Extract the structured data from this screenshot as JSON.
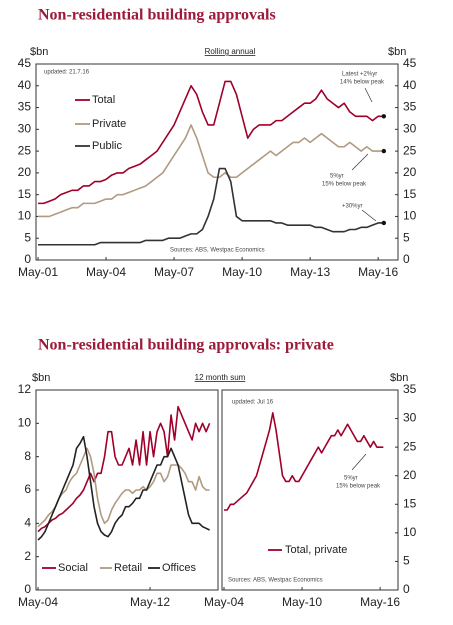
{
  "chart_data": [
    {
      "type": "line",
      "title": "Non-residential building approvals",
      "subtitle": "Rolling annual",
      "y_label": "$bn",
      "y2_label": "$bn",
      "x": [
        "May-01",
        "Aug-01",
        "Nov-01",
        "Feb-02",
        "May-02",
        "Aug-02",
        "Nov-02",
        "Feb-03",
        "May-03",
        "Aug-03",
        "Nov-03",
        "Feb-04",
        "May-04",
        "Aug-04",
        "Nov-04",
        "Feb-05",
        "May-05",
        "Aug-05",
        "Nov-05",
        "Feb-06",
        "May-06",
        "Aug-06",
        "Nov-06",
        "Feb-07",
        "May-07",
        "Aug-07",
        "Nov-07",
        "Feb-08",
        "May-08",
        "Aug-08",
        "Nov-08",
        "Feb-09",
        "May-09",
        "Aug-09",
        "Nov-09",
        "Feb-10",
        "May-10",
        "Aug-10",
        "Nov-10",
        "Feb-11",
        "May-11",
        "Aug-11",
        "Nov-11",
        "Feb-12",
        "May-12",
        "Aug-12",
        "Nov-12",
        "Feb-13",
        "May-13",
        "Aug-13",
        "Nov-13",
        "Feb-14",
        "May-14",
        "Aug-14",
        "Nov-14",
        "Feb-15",
        "May-15",
        "Aug-15",
        "Nov-15",
        "Feb-16",
        "May-16",
        "Aug-16"
      ],
      "xticks": [
        "May-01",
        "May-04",
        "May-07",
        "May-10",
        "May-13",
        "May-16"
      ],
      "ylim": [
        0,
        45
      ],
      "yticks": [
        0,
        5,
        10,
        15,
        20,
        25,
        30,
        35,
        40,
        45
      ],
      "y2lim": [
        0,
        45
      ],
      "y2ticks": [
        0,
        5,
        10,
        15,
        20,
        25,
        30,
        35,
        40,
        45
      ],
      "legend": "upper left",
      "series": [
        {
          "name": "Total",
          "color": "#a0002a",
          "values": [
            13,
            13,
            13.5,
            14,
            15,
            15.5,
            16,
            16,
            17,
            17,
            18,
            18,
            18.5,
            19.5,
            20,
            20,
            21,
            21.5,
            22,
            23,
            24,
            25,
            27,
            29,
            31,
            34,
            37,
            40,
            38,
            34,
            31,
            31,
            36,
            41,
            41,
            38,
            33,
            28,
            30,
            31,
            31,
            31,
            32,
            32,
            33,
            34,
            35,
            36,
            36,
            37,
            39,
            37,
            36,
            35,
            36,
            34,
            33,
            33,
            33,
            32,
            33,
            33
          ]
        },
        {
          "name": "Private",
          "color": "#b09a80",
          "values": [
            10,
            10,
            10,
            10.5,
            11,
            11.5,
            12,
            12,
            13,
            13,
            13,
            13.5,
            14,
            14,
            15,
            15,
            15.5,
            16,
            16.5,
            17,
            18,
            19,
            20,
            22,
            24,
            26,
            28,
            31,
            28,
            24,
            20,
            19,
            19,
            20,
            19,
            19,
            20,
            21,
            22,
            23,
            24,
            25,
            24,
            25,
            26,
            27,
            27,
            28,
            27,
            28,
            29,
            28,
            27,
            26,
            26,
            27,
            26,
            25,
            26,
            25,
            25,
            25
          ]
        },
        {
          "name": "Public",
          "color": "#333333",
          "values": [
            3.5,
            3.5,
            3.5,
            3.5,
            3.5,
            3.5,
            3.5,
            3.5,
            3.5,
            3.5,
            3.5,
            4,
            4,
            4,
            4,
            4,
            4,
            4,
            4,
            4.5,
            4.5,
            4.5,
            4.5,
            5,
            5,
            5,
            5.5,
            6,
            6,
            7,
            10,
            14,
            21,
            21,
            18,
            10,
            9,
            9,
            9,
            9,
            9,
            9,
            8.5,
            8.5,
            8,
            8,
            8,
            8,
            8,
            7.5,
            7.5,
            7,
            6.5,
            6.5,
            6.5,
            7,
            7,
            7.5,
            7.5,
            8,
            8.5,
            8.5
          ]
        }
      ],
      "annotations": [
        "updated: 21.7.16",
        "Latest +2%yr",
        "14% below peak",
        "5%yr",
        "15% below peak",
        "+30%yr",
        "Sources: ABS, Westpac Economics"
      ]
    },
    {
      "type": "line",
      "title": "Non-residential building approvals: private",
      "subtitle": "12 month sum",
      "y_label": "$bn",
      "x": [
        "May-04",
        "Aug-04",
        "Nov-04",
        "Feb-05",
        "May-05",
        "Aug-05",
        "Nov-05",
        "Feb-06",
        "May-06",
        "Aug-06",
        "Nov-06",
        "Feb-07",
        "May-07",
        "Aug-07",
        "Nov-07",
        "Feb-08",
        "May-08",
        "Aug-08",
        "Nov-08",
        "Feb-09",
        "May-09",
        "Aug-09",
        "Nov-09",
        "Feb-10",
        "May-10",
        "Aug-10",
        "Nov-10",
        "Feb-11",
        "May-11",
        "Aug-11",
        "Nov-11",
        "Feb-12",
        "May-12",
        "Aug-12",
        "Nov-12",
        "Feb-13",
        "May-13",
        "Aug-13",
        "Nov-13",
        "Feb-14",
        "May-14",
        "Aug-14",
        "Nov-14",
        "Feb-15",
        "May-15",
        "Aug-15",
        "Nov-15",
        "Feb-16",
        "May-16",
        "Aug-16"
      ],
      "xticks": [
        "May-04",
        "May-12"
      ],
      "ylim": [
        0,
        12
      ],
      "yticks": [
        0,
        2,
        4,
        6,
        8,
        10,
        12
      ],
      "legend": "lower left",
      "series": [
        {
          "name": "Social",
          "color": "#a0002a",
          "values": [
            3.5,
            3.7,
            3.8,
            4,
            4.2,
            4.3,
            4.5,
            4.6,
            4.8,
            5,
            5.2,
            5.5,
            5.7,
            6,
            6.5,
            7,
            6.5,
            7,
            7,
            8,
            9.5,
            9.5,
            8,
            7.5,
            7.5,
            8,
            8.5,
            7.5,
            9,
            7.5,
            9.5,
            7.5,
            9.5,
            8,
            9.5,
            10,
            9.5,
            8,
            10.5,
            9,
            11,
            10.5,
            10,
            9.5,
            9,
            10,
            9.5,
            10,
            9.5,
            10
          ]
        },
        {
          "name": "Retail",
          "color": "#b09a80",
          "values": [
            3.8,
            4,
            4.2,
            4.5,
            4.7,
            5,
            5.5,
            5.8,
            6,
            6.5,
            6.8,
            7,
            7.5,
            8,
            8.5,
            8,
            7,
            5.5,
            4.5,
            4,
            4.2,
            4.8,
            5.2,
            5.5,
            5.8,
            6,
            6,
            5.8,
            6,
            6,
            6.2,
            6,
            6.2,
            6.5,
            7,
            7,
            6.5,
            6.8,
            7.5,
            7.5,
            7.5,
            7.3,
            7,
            6.5,
            6.5,
            6,
            6.8,
            6.2,
            6,
            6
          ]
        },
        {
          "name": "Offices",
          "color": "#222222",
          "values": [
            3,
            3.2,
            3.5,
            4,
            4.5,
            5,
            5.5,
            6,
            6.5,
            7,
            7.5,
            8.5,
            8.8,
            9.2,
            8,
            6.5,
            5,
            4,
            3.5,
            3.3,
            3.2,
            3.5,
            4,
            4.3,
            4.5,
            5,
            5,
            5.2,
            5.5,
            5.5,
            6,
            6,
            6.5,
            7,
            7.5,
            7.5,
            8,
            8,
            8.5,
            8,
            7.5,
            6.5,
            5.5,
            4.5,
            4,
            4,
            4,
            3.8,
            3.7,
            3.6
          ]
        }
      ]
    },
    {
      "type": "line",
      "y2_label": "$bn",
      "x": [
        "May-04",
        "Aug-04",
        "Nov-04",
        "Feb-05",
        "May-05",
        "Aug-05",
        "Nov-05",
        "Feb-06",
        "May-06",
        "Aug-06",
        "Nov-06",
        "Feb-07",
        "May-07",
        "Aug-07",
        "Nov-07",
        "Feb-08",
        "May-08",
        "Aug-08",
        "Nov-08",
        "Feb-09",
        "May-09",
        "Aug-09",
        "Nov-09",
        "Feb-10",
        "May-10",
        "Aug-10",
        "Nov-10",
        "Feb-11",
        "May-11",
        "Aug-11",
        "Nov-11",
        "Feb-12",
        "May-12",
        "Aug-12",
        "Nov-12",
        "Feb-13",
        "May-13",
        "Aug-13",
        "Nov-13",
        "Feb-14",
        "May-14",
        "Aug-14",
        "Nov-14",
        "Feb-15",
        "May-15",
        "Aug-15",
        "Nov-15",
        "Feb-16",
        "May-16",
        "Aug-16"
      ],
      "xticks": [
        "May-04",
        "May-10",
        "May-16"
      ],
      "y2lim": [
        0,
        35
      ],
      "y2ticks": [
        0,
        5,
        10,
        15,
        20,
        25,
        30,
        35
      ],
      "legend": "lower center",
      "series": [
        {
          "name": "Total, private",
          "color": "#a0002a",
          "axis": "y2",
          "values": [
            14,
            14,
            15,
            15,
            15.5,
            16,
            16.5,
            17,
            18,
            19,
            20,
            22,
            24,
            26,
            28,
            31,
            28,
            24,
            20,
            19,
            19,
            20,
            19,
            19,
            20,
            21,
            22,
            23,
            24,
            25,
            24,
            25,
            26,
            27,
            27,
            28,
            27,
            28,
            29,
            28,
            27,
            26,
            26,
            27,
            26,
            25,
            26,
            25,
            25,
            25
          ]
        }
      ],
      "annotations": [
        "updated: Jul 16",
        "5%yr",
        "15% below peak",
        "Sources: ABS, Westpac Economics"
      ]
    }
  ]
}
